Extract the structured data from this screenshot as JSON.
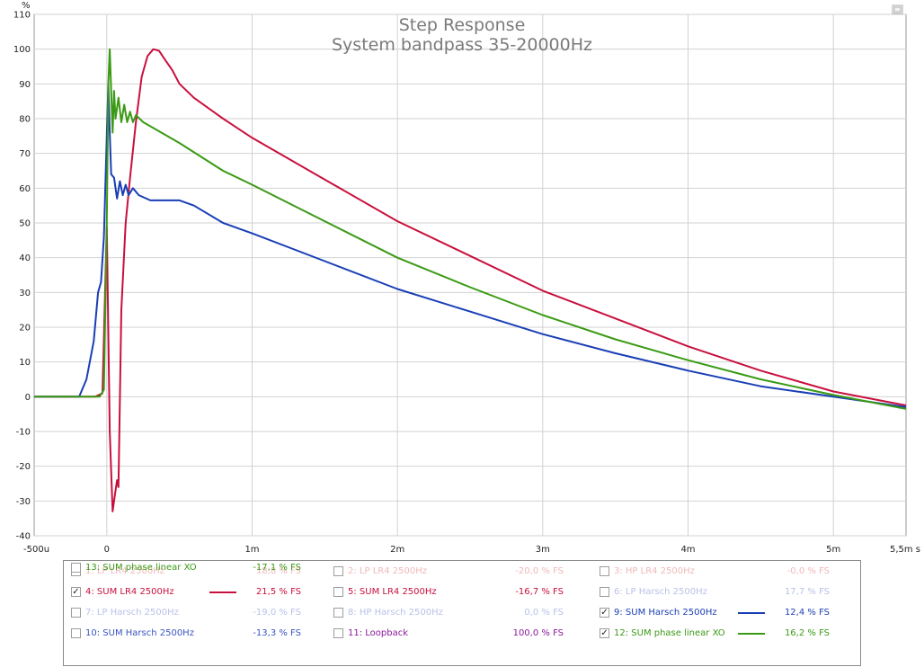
{
  "chart_data": {
    "type": "line",
    "title": "Step Response",
    "subtitle": "System bandpass 35-20000Hz",
    "ylabel": "%",
    "xlabel": "s",
    "xlim": [
      -0.0005,
      0.0055
    ],
    "ylim": [
      -40,
      110
    ],
    "x_ticks": [
      {
        "value": -0.0005,
        "label": "-500u"
      },
      {
        "value": 0,
        "label": "0"
      },
      {
        "value": 0.001,
        "label": "1m"
      },
      {
        "value": 0.002,
        "label": "2m"
      },
      {
        "value": 0.003,
        "label": "3m"
      },
      {
        "value": 0.004,
        "label": "4m"
      },
      {
        "value": 0.005,
        "label": "5m"
      },
      {
        "value": 0.0055,
        "label": "5,5m s"
      }
    ],
    "y_ticks": [
      110,
      100,
      90,
      80,
      70,
      60,
      50,
      40,
      30,
      20,
      10,
      0,
      -10,
      -20,
      -30,
      -40
    ],
    "grid": true,
    "series": [
      {
        "name": "4: SUM LR4 2500Hz",
        "color": "#c8103e",
        "x": [
          -0.0005,
          -8e-05,
          -3e-05,
          0.0,
          2e-05,
          4e-05,
          5e-05,
          7e-05,
          8e-05,
          0.0001,
          0.00013,
          0.00016,
          0.0002,
          0.00024,
          0.00028,
          0.00032,
          0.00036,
          0.0004,
          0.00045,
          0.0005,
          0.0006,
          0.0008,
          0.001,
          0.0015,
          0.002,
          0.0025,
          0.003,
          0.0035,
          0.004,
          0.0045,
          0.005,
          0.0055
        ],
        "y": [
          0,
          0,
          1,
          49,
          -10,
          -33,
          -30,
          -24,
          -26,
          25,
          50,
          63,
          79,
          92,
          98,
          100,
          99.5,
          97,
          94,
          90,
          86,
          80,
          74.5,
          62.5,
          50.5,
          40.5,
          30.5,
          22.5,
          14.5,
          7.5,
          1.5,
          -2.5
        ]
      },
      {
        "name": "9: SUM Harsch 2500Hz",
        "color": "#1a3fb5",
        "x": [
          -0.0005,
          -0.00019,
          -0.00014,
          -9e-05,
          -6e-05,
          -4e-05,
          -2e-05,
          0.0,
          1e-05,
          2e-05,
          3e-05,
          5e-05,
          7e-05,
          9e-05,
          0.00011,
          0.00013,
          0.00015,
          0.00018,
          0.00022,
          0.0003,
          0.0004,
          0.0005,
          0.0006,
          0.0008,
          0.001,
          0.0015,
          0.002,
          0.0025,
          0.003,
          0.0035,
          0.004,
          0.0045,
          0.005,
          0.0055
        ],
        "y": [
          0,
          0,
          5,
          16,
          30,
          33,
          46,
          75,
          90,
          76,
          64,
          63,
          57,
          62,
          58,
          61,
          58,
          60,
          58,
          56.5,
          56.5,
          56.5,
          55,
          50,
          47,
          39,
          31,
          24.5,
          18,
          12.5,
          7.5,
          3,
          0,
          -3
        ]
      },
      {
        "name": "12: SUM phase linear XO",
        "color": "#3a9a14",
        "x": [
          -0.0005,
          -5e-05,
          -2e-05,
          0.0,
          1e-05,
          2e-05,
          3e-05,
          4e-05,
          5e-05,
          6e-05,
          8e-05,
          0.0001,
          0.00012,
          0.00014,
          0.00016,
          0.00018,
          0.0002,
          0.00025,
          0.0005,
          0.0008,
          0.001,
          0.0015,
          0.002,
          0.0025,
          0.003,
          0.0035,
          0.004,
          0.0045,
          0.005,
          0.0055
        ],
        "y": [
          0,
          0,
          2,
          50,
          90,
          100,
          88,
          76,
          88,
          80,
          86,
          79,
          84,
          79,
          82,
          79,
          81,
          79,
          73,
          65,
          61,
          50.5,
          40,
          31.5,
          23.5,
          16.5,
          10.5,
          5,
          0.5,
          -3.5
        ]
      }
    ]
  },
  "legend": [
    {
      "check": "",
      "label": "1: LP LR4 2500Hz",
      "value": "18,8 % FS",
      "color": "#f0b8b8",
      "line": false
    },
    {
      "check": "",
      "label": "2: LP LR4 2500Hz",
      "value": "-20,0 % FS",
      "color": "#f0b8b8",
      "line": false
    },
    {
      "check": "",
      "label": "3: HP LR4 2500Hz",
      "value": "-0,0 % FS",
      "color": "#f0b8b8",
      "line": false
    },
    {
      "check": "✓",
      "label": "4: SUM LR4 2500Hz",
      "value": "21,5 % FS",
      "color": "#c8103e",
      "line": true
    },
    {
      "check": "",
      "label": "5: SUM LR4 2500Hz",
      "value": "-16,7 % FS",
      "color": "#c8103e",
      "line": false
    },
    {
      "check": "",
      "label": "6: LP Harsch 2500Hz",
      "value": "17,7 % FS",
      "color": "#b9c1e8",
      "line": false
    },
    {
      "check": "",
      "label": "7: LP Harsch 2500Hz",
      "value": "-19,0 % FS",
      "color": "#b9c1e8",
      "line": false
    },
    {
      "check": "",
      "label": "8: HP Harsch 2500Hz",
      "value": "0,0 % FS",
      "color": "#b9c1e8",
      "line": false
    },
    {
      "check": "✓",
      "label": "9: SUM Harsch 2500Hz",
      "value": "12,4 % FS",
      "color": "#1a3fb5",
      "line": true
    },
    {
      "check": "",
      "label": "10: SUM Harsch 2500Hz",
      "value": "-13,3 % FS",
      "color": "#3a55c0",
      "line": false
    },
    {
      "check": "",
      "label": "11: Loopback",
      "value": "100,0 % FS",
      "color": "#8a1a9a",
      "line": false
    },
    {
      "check": "✓",
      "label": "12: SUM phase linear XO",
      "value": "16,2 % FS",
      "color": "#3a9a14",
      "line": true
    },
    {
      "check": "",
      "label": "13: SUM phase linear XO",
      "value": "-17,1 % FS",
      "color": "#3a9a14",
      "line": false
    }
  ]
}
